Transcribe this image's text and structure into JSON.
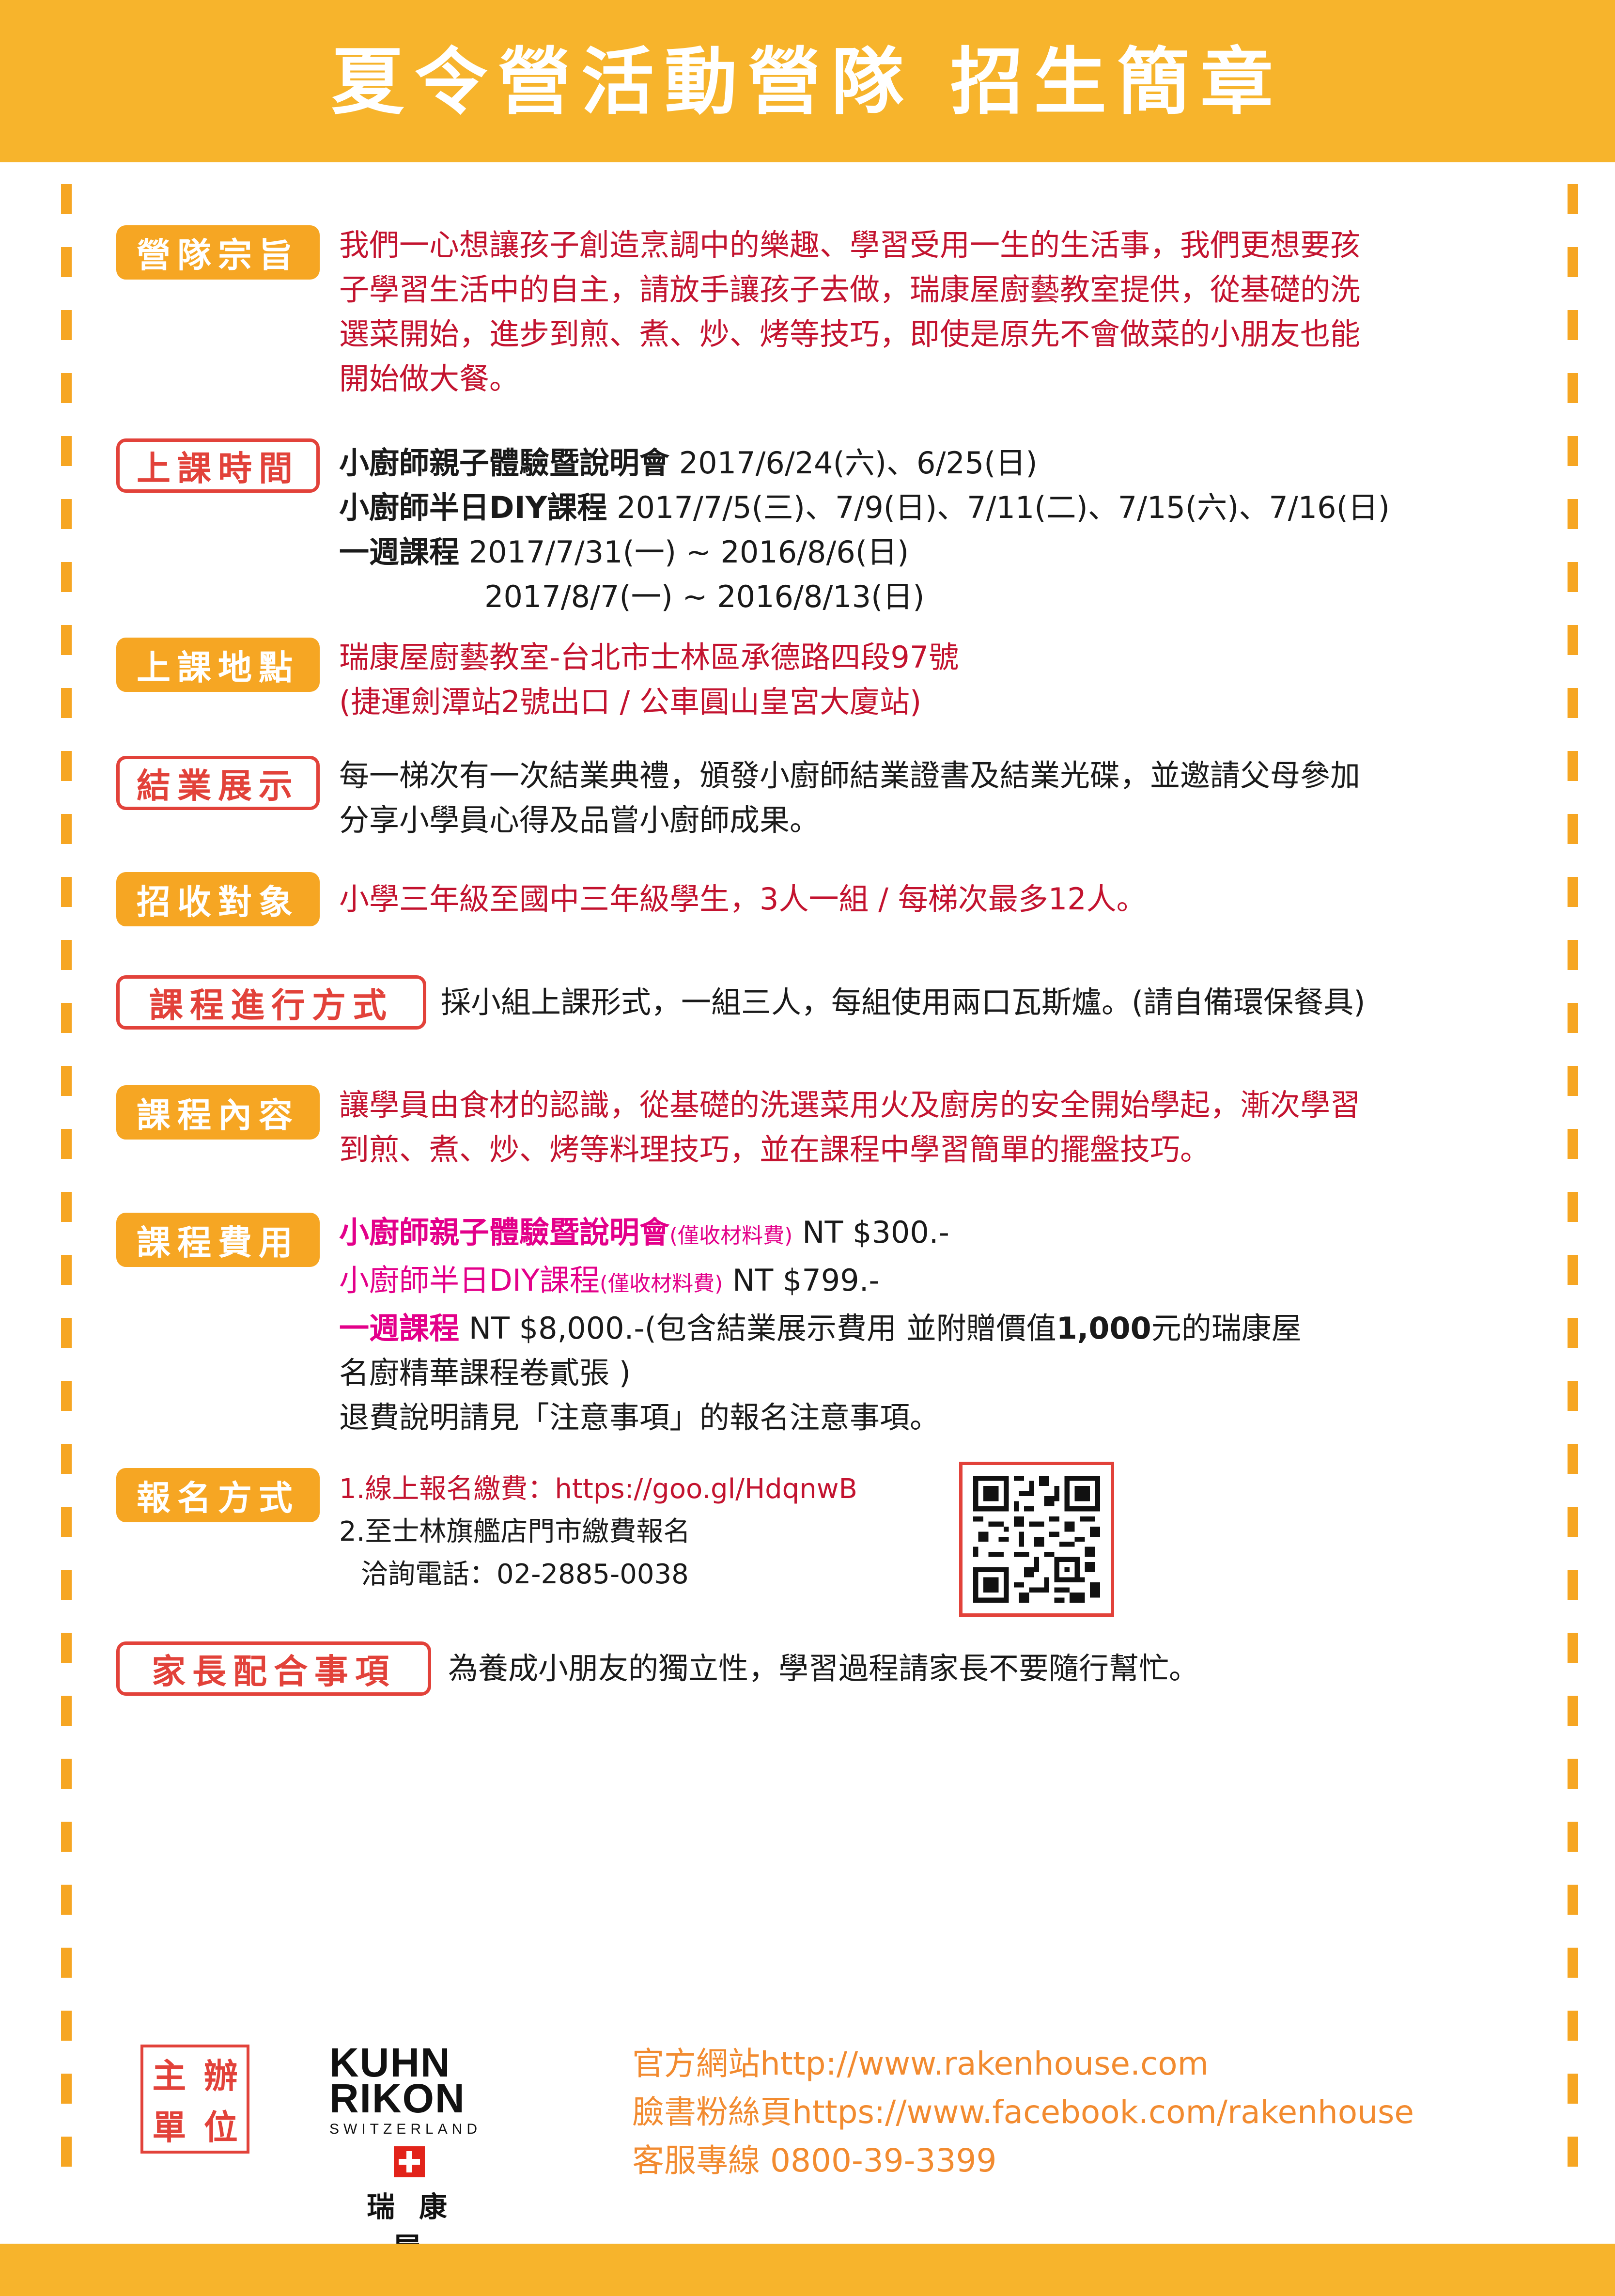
{
  "header": {
    "title": "夏令營活動營隊 招生簡章"
  },
  "sections": {
    "purpose": {
      "label": "營隊宗旨",
      "lines": [
        "我們一心想讓孩子創造烹調中的樂趣、學習受用一生的生活事，我們更想要孩",
        "子學習生活中的自主，請放手讓孩子去做，瑞康屋廚藝教室提供，從基礎的洗",
        "選菜開始，進步到煎、煮、炒、烤等技巧，即使是原先不會做菜的小朋友也能",
        "開始做大餐。"
      ]
    },
    "schedule": {
      "label": "上課時間",
      "row1_title": "小廚師親子體驗暨說明會",
      "row1_dates": " 2017/6/24(六)、6/25(日)",
      "row2_title": "小廚師半日DIY課程",
      "row2_dates": " 2017/7/5(三)、7/9(日)、7/11(二)、7/15(六)、7/16(日)",
      "row3_title": "一週課程",
      "row3_dates": " 2017/7/31(一) ~ 2016/8/6(日)",
      "row4_dates": "2017/8/7(一) ~ 2016/8/13(日)"
    },
    "location": {
      "label": "上課地點",
      "lines": [
        "瑞康屋廚藝教室-台北市士林區承德路四段97號",
        "(捷運劍潭站2號出口 / 公車圓山皇宮大廈站)"
      ]
    },
    "graduation": {
      "label": "結業展示",
      "lines": [
        "每一梯次有一次結業典禮，頒發小廚師結業證書及結業光碟，並邀請父母參加",
        "分享小學員心得及品嘗小廚師成果。"
      ]
    },
    "target": {
      "label": "招收對象",
      "text": "小學三年級至國中三年級學生，3人一組 / 每梯次最多12人。"
    },
    "format": {
      "label": "課程進行方式",
      "text": "採小組上課形式，一組三人，每組使用兩口瓦斯爐。(請自備環保餐具)"
    },
    "content": {
      "label": "課程內容",
      "lines": [
        "讓學員由食材的認識，從基礎的洗選菜用火及廚房的安全開始學起，漸次學習",
        "到煎、煮、炒、烤等料理技巧，並在課程中學習簡單的擺盤技巧。"
      ]
    },
    "fees": {
      "label": "課程費用",
      "fee1_title": "小廚師親子體驗暨說明會",
      "fee1_note": "(僅收材料費)",
      "fee1_price": " NT $300.-",
      "fee2_title": "小廚師半日DIY課程",
      "fee2_note": "(僅收材料費)",
      "fee2_price": " NT $799.-",
      "fee3_title": "一週課程",
      "fee3_price": " NT $8,000.-(包含結業展示費用 並附贈價值",
      "fee3_bold": "1,000",
      "fee3_rest": "元的瑞康屋",
      "fee3_line2": "名廚精華課程卷貳張 )",
      "refund": "退費說明請見「注意事項」的報名注意事項。"
    },
    "registration": {
      "label": "報名方式",
      "online": "1.線上報名繳費：https://goo.gl/HdqnwB",
      "store": "2.至士林旗艦店門市繳費報名",
      "phone": "洽詢電話：02-2885-0038"
    },
    "parents": {
      "label": "家長配合事項",
      "text": "為養成小朋友的獨立性，學習過程請家長不要隨行幫忙。"
    }
  },
  "footer": {
    "host_chars": [
      "主",
      "辦",
      "單",
      "位"
    ],
    "logo_line1": "KUHN",
    "logo_line2": "RIKON",
    "logo_sub": "SWITZERLAND",
    "logo_zh": "瑞康屋",
    "website": "官方網站http://www.rakenhouse.com",
    "facebook": "臉書粉絲頁https://www.facebook.com/rakenhouse",
    "hotline": "客服專線 0800-39-3399"
  },
  "colors": {
    "orange": "#f6a623",
    "red": "#e2423a",
    "text_red": "#c3132f",
    "pink": "#e3008a",
    "footer_text": "#f28b30"
  }
}
